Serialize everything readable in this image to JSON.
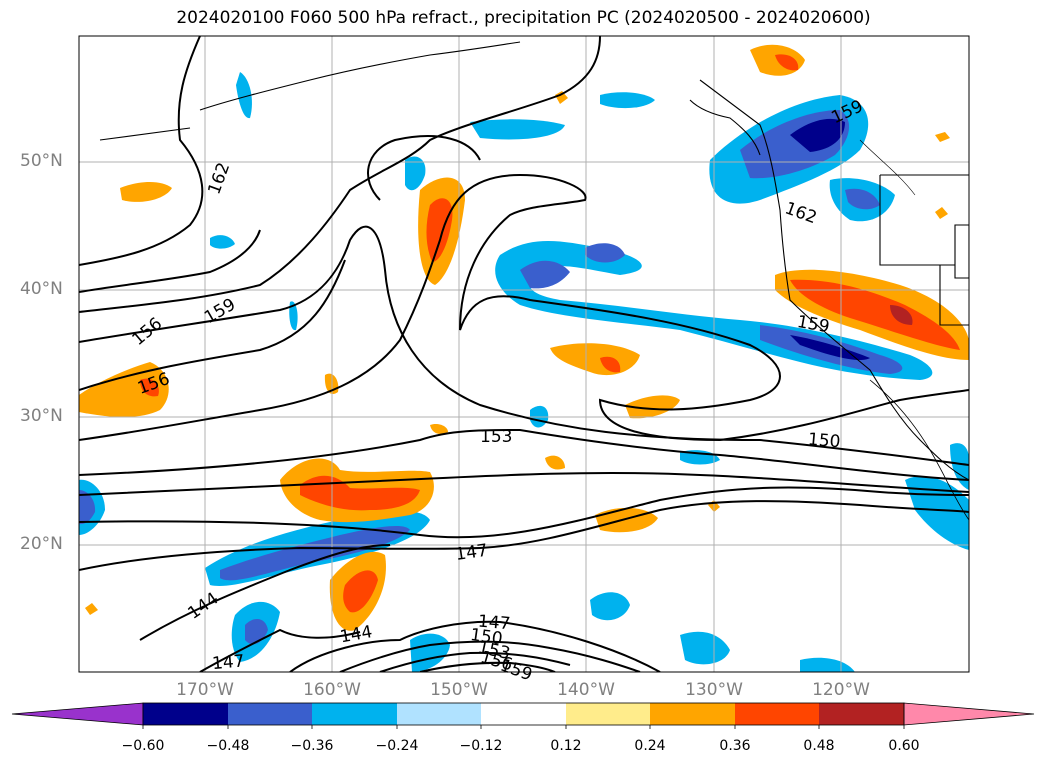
{
  "title": "2024020100 F060 500 hPa refract., precipitation PC (2024020500 - 2024020600)",
  "map": {
    "lat_labels": [
      "50°N",
      "40°N",
      "30°N",
      "20°N"
    ],
    "lon_labels": [
      "170°W",
      "160°W",
      "150°W",
      "140°W",
      "130°W",
      "120°W"
    ],
    "contour_labels": [
      "162",
      "159",
      "156",
      "156",
      "153",
      "150",
      "147",
      "144",
      "144",
      "147",
      "147",
      "150",
      "153",
      "156",
      "159",
      "159",
      "159",
      "162"
    ],
    "gridlines": true
  },
  "colorbar": {
    "tick_labels": [
      "−0.60",
      "−0.48",
      "−0.36",
      "−0.24",
      "−0.12",
      "0.12",
      "0.24",
      "0.36",
      "0.48",
      "0.60"
    ],
    "colors": [
      "#9932cc",
      "#00008b",
      "#3a5fcd",
      "#00b2ee",
      "#b0e2ff",
      "#ffffff",
      "#ffec8b",
      "#ffa500",
      "#ff4500",
      "#b22222",
      "#ff88aa"
    ]
  }
}
